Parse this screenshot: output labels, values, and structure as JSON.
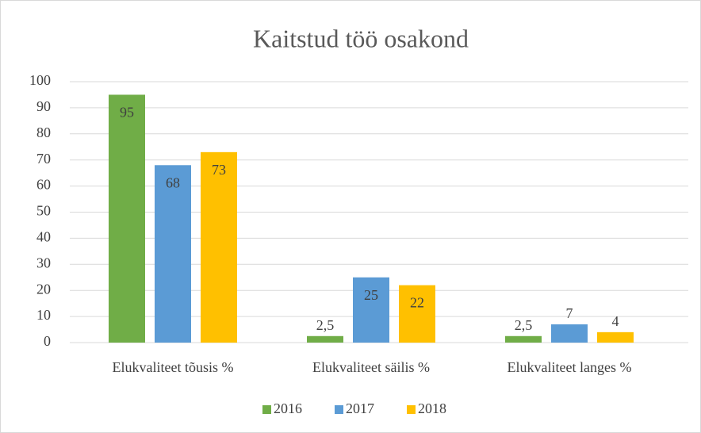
{
  "chart_data": {
    "type": "bar",
    "title": "Kaitstud töö osakond",
    "categories": [
      "Elukvaliteet tõusis %",
      "Elukvaliteet säilis %",
      "Elukvaliteet langes %"
    ],
    "series": [
      {
        "name": "2016",
        "color": "#70ad47",
        "values": [
          95,
          2.5,
          2.5
        ],
        "value_labels": [
          "95",
          "2,5",
          "2,5"
        ]
      },
      {
        "name": "2017",
        "color": "#5b9bd5",
        "values": [
          68,
          25,
          7
        ]
      },
      {
        "name": "2018",
        "color": "#ffc000",
        "values": [
          73,
          22,
          4
        ]
      }
    ],
    "ylim": [
      0,
      100
    ],
    "yticks": [
      0,
      10,
      20,
      30,
      40,
      50,
      60,
      70,
      80,
      90,
      100
    ],
    "grid": true,
    "legend": "bottom"
  }
}
